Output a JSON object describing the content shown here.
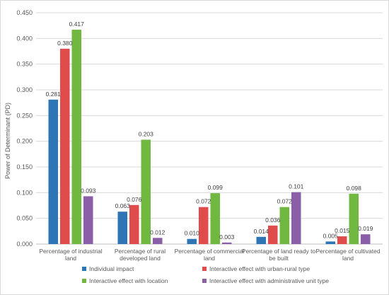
{
  "chart_data": {
    "type": "bar",
    "ylabel": "Power of Determinant (PD)",
    "xlabel": "",
    "ylim": [
      0,
      0.45
    ],
    "yticks": [
      "0.000",
      "0.050",
      "0.100",
      "0.150",
      "0.200",
      "0.250",
      "0.300",
      "0.350",
      "0.400",
      "0.450"
    ],
    "ytick_values": [
      0,
      0.05,
      0.1,
      0.15,
      0.2,
      0.25,
      0.3,
      0.35,
      0.4,
      0.45
    ],
    "grid": true,
    "legend_position": "bottom",
    "categories": [
      [
        "Percentage of industrial",
        "land"
      ],
      [
        "Percentage of rural",
        "developed land"
      ],
      [
        "Percentage of commercial",
        "land"
      ],
      [
        "Percentage of land ready to",
        "be built"
      ],
      [
        "Percentage of cultivated",
        "land"
      ]
    ],
    "series": [
      {
        "name": "Individual impact",
        "color": "#2e75b6",
        "values": [
          0.281,
          0.063,
          0.01,
          0.014,
          0.005
        ],
        "labels": [
          "0.281",
          "0.063",
          "0.010",
          "0.014",
          "0.005"
        ]
      },
      {
        "name": "Interactive effect with urban-rural type",
        "color": "#e04b4b",
        "values": [
          0.38,
          0.076,
          0.072,
          0.036,
          0.015
        ],
        "labels": [
          "0.380",
          "0.076",
          "0.072",
          "0.036",
          "0.015"
        ]
      },
      {
        "name": "Interactive effect with location",
        "color": "#70b83f",
        "values": [
          0.417,
          0.203,
          0.099,
          0.072,
          0.098
        ],
        "labels": [
          "0.417",
          "0.203",
          "0.099",
          "0.072",
          "0.098"
        ]
      },
      {
        "name": "Interactive effect with administrative unit type",
        "color": "#8a5fa8",
        "values": [
          0.093,
          0.012,
          0.003,
          0.101,
          0.019
        ],
        "labels": [
          "0.093",
          "0.012",
          "0.003",
          "0.101",
          "0.019"
        ]
      }
    ]
  }
}
